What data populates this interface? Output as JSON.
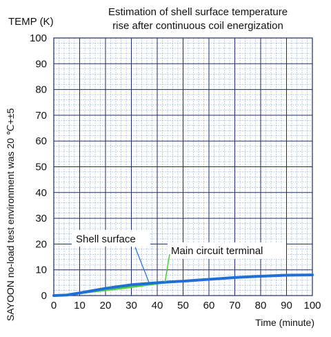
{
  "chart_data": {
    "type": "line",
    "title_lines": [
      "Estimation of shell surface temperature",
      "rise after continuous coil energization"
    ],
    "ylabel": "TEMP (K)",
    "xlabel": "Time (minute)",
    "vertical_note": "SAYOON no-load test environment was 20  ℃+±5",
    "xlim": [
      0,
      100
    ],
    "ylim": [
      0,
      100
    ],
    "x_ticks": [
      0,
      10,
      20,
      30,
      40,
      50,
      60,
      70,
      80,
      90,
      100
    ],
    "y_ticks": [
      0,
      10,
      20,
      30,
      40,
      50,
      60,
      70,
      80,
      90,
      100
    ],
    "grid": true,
    "series": [
      {
        "name": "Shell surface",
        "color": "#1f6fd6",
        "x": [
          0,
          5,
          10,
          20,
          30,
          40,
          50,
          60,
          70,
          80,
          90,
          100
        ],
        "y": [
          0,
          0.2,
          1,
          2.8,
          4.2,
          5,
          5.6,
          6.3,
          7,
          7.5,
          7.9,
          8
        ]
      },
      {
        "name": "Main circuit terminal",
        "color": "#4ccf3a",
        "x": [
          5,
          10,
          20,
          30,
          40,
          45
        ],
        "y": [
          0.2,
          1,
          2.2,
          3.4,
          4.8,
          5.4
        ]
      }
    ],
    "annotations": [
      {
        "text": "Shell surface",
        "points_to": {
          "x": 37,
          "y": 4.6
        }
      },
      {
        "text": "Main circuit terminal",
        "points_to": {
          "x": 43,
          "y": 5.3
        }
      }
    ]
  }
}
